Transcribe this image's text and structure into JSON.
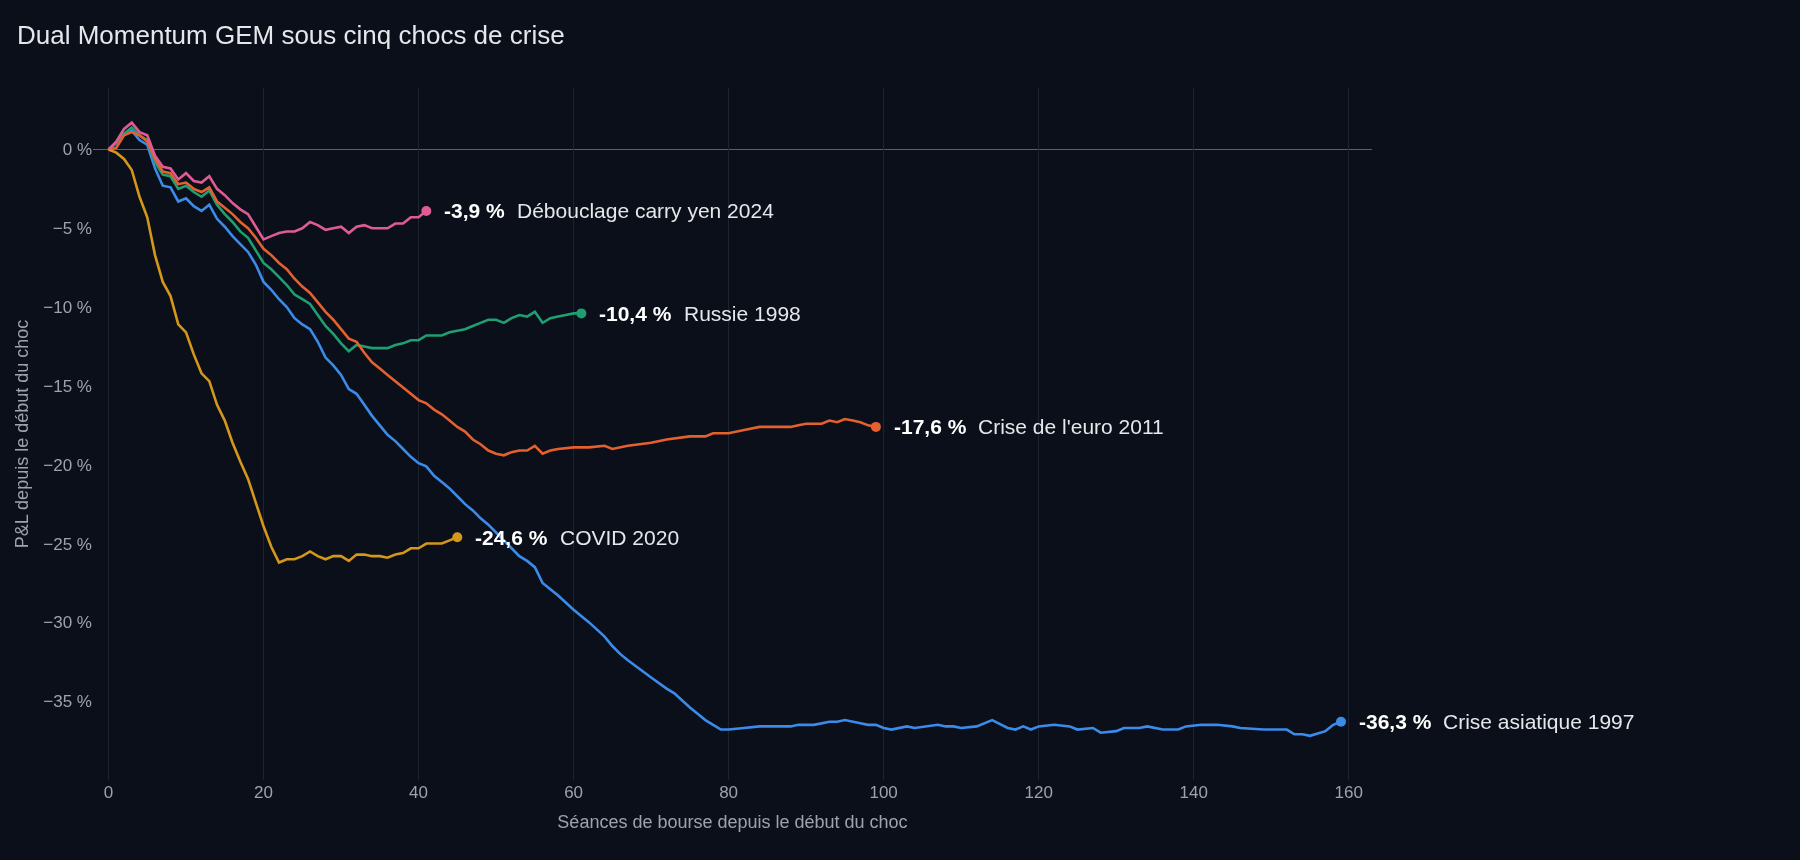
{
  "chart_data": {
    "type": "line",
    "title": "Dual Momentum GEM sous cinq chocs de crise",
    "xlabel": "Séances de bourse depuis le début du choc",
    "ylabel": "P&L depuis le début du choc",
    "xlim": [
      -2,
      163
    ],
    "xticks": [
      0,
      20,
      40,
      60,
      80,
      100,
      120,
      140,
      160
    ],
    "ylim": [
      -40,
      3.9
    ],
    "yticks": [
      {
        "value": 0,
        "label": "0 %"
      },
      {
        "value": -5,
        "label": "−5 %"
      },
      {
        "value": -10,
        "label": "−10 %"
      },
      {
        "value": -15,
        "label": "−15 %"
      },
      {
        "value": -20,
        "label": "−20 %"
      },
      {
        "value": -25,
        "label": "−25 %"
      },
      {
        "value": -30,
        "label": "−30 %"
      },
      {
        "value": -35,
        "label": "−35 %"
      }
    ],
    "grid": "x",
    "legend": false,
    "line_style": "solid",
    "ref_lines": [
      {
        "axis": "y",
        "value": 0,
        "color": "#5a6170"
      }
    ],
    "series": [
      {
        "name": "Crise asiatique 1997",
        "color": "#3b8beb",
        "x": [
          0,
          1,
          2,
          3,
          4,
          5,
          6,
          7,
          8,
          9,
          10,
          11,
          12,
          13,
          14,
          15,
          16,
          17,
          18,
          19,
          20,
          21,
          22,
          23,
          24,
          25,
          26,
          27,
          28,
          29,
          30,
          31,
          32,
          33,
          34,
          35,
          36,
          37,
          38,
          39,
          40,
          41,
          42,
          43,
          44,
          45,
          46,
          47,
          48,
          49,
          50,
          51,
          52,
          53,
          54,
          55,
          56,
          57,
          58,
          60,
          62,
          64,
          65,
          66,
          67,
          70,
          72,
          73,
          75,
          76,
          77,
          78,
          79,
          80,
          82,
          84,
          86,
          88,
          89,
          91,
          93,
          94,
          95,
          97,
          98,
          99,
          100,
          101,
          103,
          104,
          107,
          108,
          109,
          110,
          112,
          114,
          116,
          117,
          118,
          119,
          120,
          122,
          124,
          125,
          127,
          128,
          130,
          131,
          133,
          134,
          136,
          138,
          139,
          141,
          143,
          145,
          146,
          149,
          150,
          152,
          153,
          154,
          155,
          157,
          158,
          159
        ],
        "values": [
          0,
          0.4,
          1.0,
          1.2,
          0.6,
          0.3,
          -1.2,
          -2.3,
          -2.4,
          -3.3,
          -3.1,
          -3.6,
          -3.9,
          -3.5,
          -4.4,
          -4.9,
          -5.5,
          -6.0,
          -6.5,
          -7.3,
          -8.4,
          -8.9,
          -9.5,
          -10.0,
          -10.7,
          -11.1,
          -11.4,
          -12.2,
          -13.2,
          -13.7,
          -14.3,
          -15.2,
          -15.5,
          -16.2,
          -16.9,
          -17.5,
          -18.1,
          -18.5,
          -19.0,
          -19.5,
          -19.9,
          -20.1,
          -20.7,
          -21.1,
          -21.5,
          -22.0,
          -22.5,
          -22.9,
          -23.4,
          -23.8,
          -24.3,
          -24.8,
          -25.3,
          -25.8,
          -26.1,
          -26.5,
          -27.5,
          -27.9,
          -28.3,
          -29.2,
          -30.0,
          -30.9,
          -31.5,
          -32.0,
          -32.4,
          -33.5,
          -34.2,
          -34.5,
          -35.4,
          -35.8,
          -36.2,
          -36.5,
          -36.8,
          -36.8,
          -36.7,
          -36.6,
          -36.6,
          -36.6,
          -36.5,
          -36.5,
          -36.3,
          -36.3,
          -36.2,
          -36.4,
          -36.5,
          -36.5,
          -36.7,
          -36.8,
          -36.6,
          -36.7,
          -36.5,
          -36.6,
          -36.6,
          -36.7,
          -36.6,
          -36.2,
          -36.7,
          -36.8,
          -36.6,
          -36.8,
          -36.6,
          -36.5,
          -36.6,
          -36.8,
          -36.7,
          -37.0,
          -36.9,
          -36.7,
          -36.7,
          -36.6,
          -36.8,
          -36.8,
          -36.6,
          -36.5,
          -36.5,
          -36.6,
          -36.7,
          -36.8,
          -36.8,
          -36.8,
          -37.1,
          -37.1,
          -37.2,
          -36.9,
          -36.5,
          -36.3
        ],
        "value_labels": [
          null,
          null,
          null,
          null,
          null,
          null,
          null,
          null,
          null,
          null,
          null,
          null,
          null,
          null,
          null,
          null,
          null,
          null,
          null,
          null,
          null,
          null,
          null,
          null,
          null,
          null,
          null,
          null,
          null,
          null,
          null,
          null,
          null,
          null,
          null,
          null,
          null,
          null,
          null,
          null,
          null,
          null,
          null,
          null,
          null,
          null,
          null,
          null,
          null,
          null,
          null,
          null,
          null,
          null,
          null,
          null,
          null,
          null,
          null,
          null,
          null,
          null,
          null,
          null,
          null,
          null,
          null,
          null,
          null,
          null,
          null,
          null,
          null,
          null,
          null,
          null,
          null,
          null,
          null,
          null,
          null,
          null,
          null,
          null,
          null,
          null,
          null,
          null,
          null,
          null,
          null,
          null,
          null,
          null,
          null,
          null,
          null,
          null,
          null,
          null,
          null,
          null,
          null,
          null,
          null,
          null,
          null,
          null,
          null,
          null,
          null,
          null,
          null,
          null,
          null,
          null,
          null,
          null,
          null,
          null,
          null,
          null,
          null,
          null,
          null,
          "-36,3 %"
        ]
      },
      {
        "name": "Russie 1998",
        "color": "#1f9e70",
        "x": [
          0,
          1,
          2,
          3,
          4,
          5,
          6,
          7,
          8,
          9,
          10,
          11,
          12,
          13,
          14,
          15,
          16,
          17,
          18,
          19,
          20,
          21,
          22,
          23,
          24,
          25,
          26,
          27,
          28,
          29,
          30,
          31,
          32,
          33,
          34,
          35,
          36,
          37,
          38,
          39,
          40,
          41,
          42,
          43,
          44,
          45,
          46,
          47,
          48,
          49,
          50,
          51,
          52,
          53,
          54,
          55,
          56,
          57,
          58,
          59,
          60,
          61
        ],
        "values": [
          0,
          0.4,
          1.0,
          1.4,
          0.9,
          0.6,
          -0.8,
          -1.6,
          -1.7,
          -2.5,
          -2.3,
          -2.7,
          -3.0,
          -2.6,
          -3.5,
          -4.1,
          -4.6,
          -5.2,
          -5.6,
          -6.4,
          -7.2,
          -7.6,
          -8.1,
          -8.6,
          -9.2,
          -9.5,
          -9.8,
          -10.5,
          -11.2,
          -11.7,
          -12.3,
          -12.8,
          -12.4,
          -12.5,
          -12.6,
          -12.6,
          -12.6,
          -12.4,
          -12.3,
          -12.1,
          -12.1,
          -11.8,
          -11.8,
          -11.8,
          -11.6,
          -11.5,
          -11.4,
          -11.2,
          -11.0,
          -10.8,
          -10.8,
          -11.0,
          -10.7,
          -10.5,
          -10.6,
          -10.3,
          -11.0,
          -10.7,
          -10.6,
          -10.5,
          -10.4,
          -10.4
        ],
        "value_labels": [
          null,
          null,
          null,
          null,
          null,
          null,
          null,
          null,
          null,
          null,
          null,
          null,
          null,
          null,
          null,
          null,
          null,
          null,
          null,
          null,
          null,
          null,
          null,
          null,
          null,
          null,
          null,
          null,
          null,
          null,
          null,
          null,
          null,
          null,
          null,
          null,
          null,
          null,
          null,
          null,
          null,
          null,
          null,
          null,
          null,
          null,
          null,
          null,
          null,
          null,
          null,
          null,
          null,
          null,
          null,
          null,
          null,
          null,
          null,
          null,
          null,
          "-10,4 %"
        ]
      },
      {
        "name": "Crise de l'euro 2011",
        "color": "#e4602e",
        "x": [
          0,
          1,
          2,
          3,
          4,
          5,
          6,
          7,
          8,
          9,
          10,
          11,
          12,
          13,
          14,
          15,
          16,
          17,
          18,
          19,
          20,
          21,
          22,
          23,
          24,
          25,
          26,
          27,
          28,
          29,
          30,
          31,
          32,
          33,
          34,
          35,
          36,
          37,
          38,
          39,
          40,
          41,
          42,
          43,
          44,
          45,
          46,
          47,
          48,
          49,
          50,
          51,
          52,
          53,
          54,
          55,
          56,
          57,
          58,
          60,
          62,
          64,
          65,
          67,
          70,
          72,
          75,
          77,
          78,
          80,
          82,
          84,
          86,
          88,
          89,
          90,
          92,
          93,
          94,
          95,
          96,
          97,
          98,
          99
        ],
        "values": [
          0,
          0.1,
          0.9,
          1.1,
          0.9,
          0.5,
          -0.6,
          -1.4,
          -1.5,
          -2.2,
          -2.1,
          -2.5,
          -2.7,
          -2.4,
          -3.3,
          -3.7,
          -4.1,
          -4.6,
          -5.0,
          -5.6,
          -6.3,
          -6.7,
          -7.2,
          -7.6,
          -8.2,
          -8.7,
          -9.1,
          -9.7,
          -10.3,
          -10.8,
          -11.4,
          -12.0,
          -12.2,
          -12.9,
          -13.5,
          -13.9,
          -14.3,
          -14.7,
          -15.1,
          -15.5,
          -15.9,
          -16.1,
          -16.5,
          -16.8,
          -17.2,
          -17.6,
          -17.9,
          -18.4,
          -18.7,
          -19.1,
          -19.3,
          -19.4,
          -19.2,
          -19.1,
          -19.1,
          -18.8,
          -19.3,
          -19.1,
          -19.0,
          -18.9,
          -18.9,
          -18.8,
          -19.0,
          -18.8,
          -18.6,
          -18.4,
          -18.2,
          -18.2,
          -18.0,
          -18.0,
          -17.8,
          -17.6,
          -17.6,
          -17.6,
          -17.5,
          -17.4,
          -17.4,
          -17.2,
          -17.3,
          -17.1,
          -17.2,
          -17.3,
          -17.5,
          -17.6
        ],
        "value_labels": [
          null,
          null,
          null,
          null,
          null,
          null,
          null,
          null,
          null,
          null,
          null,
          null,
          null,
          null,
          null,
          null,
          null,
          null,
          null,
          null,
          null,
          null,
          null,
          null,
          null,
          null,
          null,
          null,
          null,
          null,
          null,
          null,
          null,
          null,
          null,
          null,
          null,
          null,
          null,
          null,
          null,
          null,
          null,
          null,
          null,
          null,
          null,
          null,
          null,
          null,
          null,
          null,
          null,
          null,
          null,
          null,
          null,
          null,
          null,
          null,
          null,
          null,
          null,
          null,
          null,
          null,
          null,
          null,
          null,
          null,
          null,
          null,
          null,
          null,
          null,
          null,
          null,
          null,
          null,
          null,
          null,
          null,
          null,
          "-17,6 %"
        ]
      },
      {
        "name": "COVID 2020",
        "color": "#d4971a",
        "x": [
          0,
          1,
          2,
          3,
          4,
          5,
          6,
          7,
          8,
          9,
          10,
          11,
          12,
          13,
          14,
          15,
          16,
          17,
          18,
          19,
          20,
          21,
          22,
          23,
          24,
          25,
          26,
          27,
          28,
          29,
          30,
          31,
          32,
          33,
          34,
          35,
          36,
          37,
          38,
          39,
          40,
          41,
          42,
          43,
          44,
          45
        ],
        "values": [
          0,
          -0.2,
          -0.6,
          -1.3,
          -3.0,
          -4.3,
          -6.7,
          -8.4,
          -9.3,
          -11.1,
          -11.6,
          -13.0,
          -14.2,
          -14.7,
          -16.2,
          -17.2,
          -18.6,
          -19.8,
          -20.9,
          -22.4,
          -23.9,
          -25.2,
          -26.2,
          -26.0,
          -26.0,
          -25.8,
          -25.5,
          -25.8,
          -26.0,
          -25.8,
          -25.8,
          -26.1,
          -25.7,
          -25.7,
          -25.8,
          -25.8,
          -25.9,
          -25.7,
          -25.6,
          -25.3,
          -25.3,
          -25.0,
          -25.0,
          -25.0,
          -24.8,
          -24.6
        ],
        "value_labels": [
          null,
          null,
          null,
          null,
          null,
          null,
          null,
          null,
          null,
          null,
          null,
          null,
          null,
          null,
          null,
          null,
          null,
          null,
          null,
          null,
          null,
          null,
          null,
          null,
          null,
          null,
          null,
          null,
          null,
          null,
          null,
          null,
          null,
          null,
          null,
          null,
          null,
          null,
          null,
          null,
          null,
          null,
          null,
          null,
          null,
          "-24,6 %"
        ]
      },
      {
        "name": "Débouclage carry yen 2024",
        "color": "#df5b94",
        "x": [
          0,
          1,
          2,
          3,
          4,
          5,
          6,
          7,
          8,
          9,
          10,
          11,
          12,
          13,
          14,
          15,
          16,
          17,
          18,
          19,
          20,
          21,
          22,
          23,
          24,
          25,
          26,
          27,
          28,
          29,
          30,
          31,
          32,
          33,
          34,
          35,
          36,
          37,
          38,
          39,
          40,
          41
        ],
        "values": [
          0,
          0.5,
          1.3,
          1.7,
          1.1,
          0.9,
          -0.4,
          -1.1,
          -1.2,
          -1.9,
          -1.5,
          -2.0,
          -2.1,
          -1.7,
          -2.5,
          -2.9,
          -3.4,
          -3.8,
          -4.1,
          -4.9,
          -5.7,
          -5.5,
          -5.3,
          -5.2,
          -5.2,
          -5.0,
          -4.6,
          -4.8,
          -5.1,
          -5.0,
          -4.9,
          -5.3,
          -4.9,
          -4.8,
          -5.0,
          -5.0,
          -5.0,
          -4.7,
          -4.7,
          -4.3,
          -4.3,
          -3.9
        ],
        "value_labels": [
          null,
          null,
          null,
          null,
          null,
          null,
          null,
          null,
          null,
          null,
          null,
          null,
          null,
          null,
          null,
          null,
          null,
          null,
          null,
          null,
          null,
          null,
          null,
          null,
          null,
          null,
          null,
          null,
          null,
          null,
          null,
          null,
          null,
          null,
          null,
          null,
          null,
          null,
          null,
          null,
          null,
          "-3,9 %"
        ]
      }
    ]
  }
}
